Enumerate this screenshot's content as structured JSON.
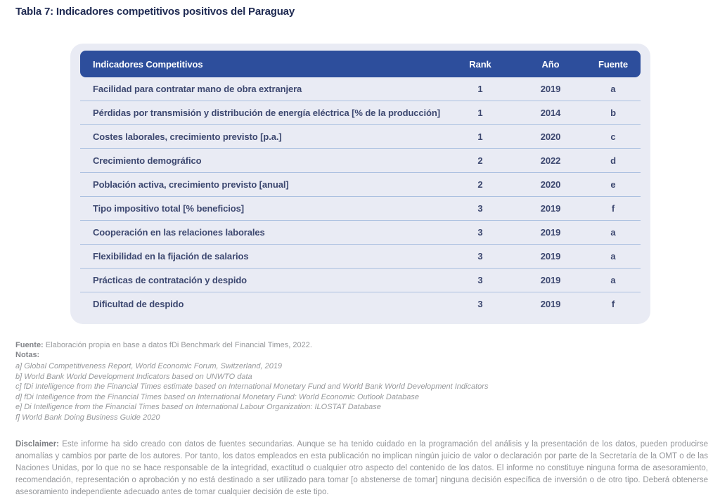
{
  "page_title": "Tabla 7: Indicadores competitivos positivos del Paraguay",
  "colors": {
    "header_bg": "#2d4e9c",
    "card_bg": "#e9ebf4",
    "row_separator": "#abc0e0",
    "row_text": "#3d4870",
    "title_text": "#1f2a52",
    "footnote_text": "#97999c"
  },
  "table": {
    "columns": {
      "indicator": "Indicadores Competitivos",
      "rank": "Rank",
      "year": "Año",
      "source": "Fuente"
    },
    "rows": [
      {
        "indicator": "Facilidad para contratar mano de obra extranjera",
        "rank": 1,
        "year": 2019,
        "source": "a"
      },
      {
        "indicator": "Pérdidas por transmisión y distribución de energía eléctrica [% de la producción]",
        "rank": 1,
        "year": 2014,
        "source": "b"
      },
      {
        "indicator": "Costes laborales, crecimiento previsto [p.a.]",
        "rank": 1,
        "year": 2020,
        "source": "c"
      },
      {
        "indicator": "Crecimiento demográfico",
        "rank": 2,
        "year": 2022,
        "source": "d"
      },
      {
        "indicator": "Población activa, crecimiento previsto [anual]",
        "rank": 2,
        "year": 2020,
        "source": "e"
      },
      {
        "indicator": "Tipo impositivo total [% beneficios]",
        "rank": 3,
        "year": 2019,
        "source": "f"
      },
      {
        "indicator": "Cooperación en las relaciones laborales",
        "rank": 3,
        "year": 2019,
        "source": "a"
      },
      {
        "indicator": "Flexibilidad en la fijación de salarios",
        "rank": 3,
        "year": 2019,
        "source": "a"
      },
      {
        "indicator": "Prácticas de contratación y despido",
        "rank": 3,
        "year": 2019,
        "source": "a"
      },
      {
        "indicator": "Dificultad de despido",
        "rank": 3,
        "year": 2019,
        "source": "f"
      }
    ]
  },
  "footnotes": {
    "source_label": "Fuente:",
    "source_text": "Elaboración propia en base a datos fDi Benchmark del Financial Times, 2022.",
    "notes_label": "Notas:",
    "notes": [
      "a] Global Competitiveness Report, World Economic Forum, Switzerland, 2019",
      "b] World Bank World Development Indicators based on UNWTO data",
      "c] fDi Intelligence from the Financial Times estimate based on International Monetary Fund and World Bank World Development Indicators",
      "d] fDi Intelligence from the Financial Times based on International Monetary Fund: World Economic Outlook Database",
      "e] Di Intelligence from the Financial Times based on International Labour Organization: ILOSTAT Database",
      "f] World Bank Doing Business Guide 2020"
    ]
  },
  "disclaimer": {
    "label": "Disclaimer:",
    "text": "Este informe ha sido creado con datos de fuentes secundarias.  Aunque se ha tenido cuidado en la programación del análisis y la presentación de los datos, pueden producirse anomalías y cambios por parte de los autores. Por tanto, los datos empleados en esta publicación no implican ningún juicio de valor o declaración por parte de la Secretaría de la OMT o de las Naciones Unidas, por lo que no se hace responsable de la integridad, exactitud o cualquier otro aspecto del contenido de los datos. El informe no constituye ninguna forma de asesoramiento, recomendación, representación o aprobación y no está destinado a ser utilizado para tomar [o abstenerse de tomar] ninguna decisión específica de inversión o de otro tipo. Deberá obtenerse asesoramiento independiente adecuado antes de tomar cualquier decisión de este tipo."
  }
}
